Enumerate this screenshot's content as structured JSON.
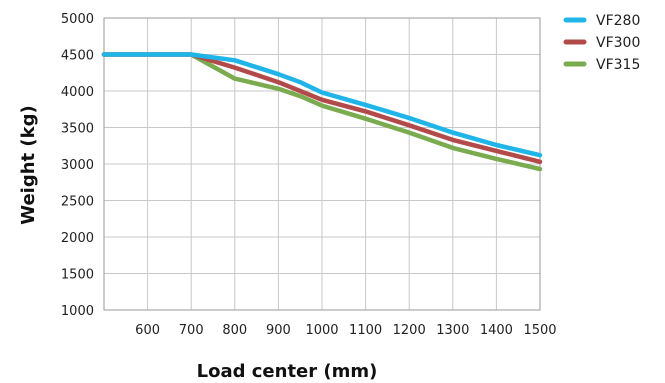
{
  "chart_data": {
    "type": "line",
    "title": "",
    "xlabel": "Load center (mm)",
    "ylabel": "Weight (kg)",
    "xlim": [
      500,
      1500
    ],
    "ylim": [
      1000,
      5000
    ],
    "x_ticks": [
      600,
      700,
      800,
      900,
      1000,
      1100,
      1200,
      1300,
      1400,
      1500
    ],
    "y_ticks": [
      1000,
      1500,
      2000,
      2500,
      3000,
      3500,
      4000,
      4500,
      5000
    ],
    "grid": true,
    "legend_position": "right",
    "series": [
      {
        "name": "VF280",
        "color": "#1fb5e8",
        "points": [
          [
            500,
            4500
          ],
          [
            700,
            4500
          ],
          [
            800,
            4420
          ],
          [
            900,
            4230
          ],
          [
            950,
            4120
          ],
          [
            1000,
            3980
          ],
          [
            1100,
            3810
          ],
          [
            1200,
            3630
          ],
          [
            1300,
            3430
          ],
          [
            1400,
            3260
          ],
          [
            1500,
            3120
          ]
        ]
      },
      {
        "name": "VF300",
        "color": "#b34a4a",
        "points": [
          [
            500,
            4500
          ],
          [
            700,
            4500
          ],
          [
            800,
            4320
          ],
          [
            900,
            4120
          ],
          [
            950,
            4000
          ],
          [
            1000,
            3880
          ],
          [
            1100,
            3720
          ],
          [
            1200,
            3530
          ],
          [
            1300,
            3330
          ],
          [
            1400,
            3180
          ],
          [
            1500,
            3030
          ]
        ]
      },
      {
        "name": "VF315",
        "color": "#7aab4f",
        "points": [
          [
            500,
            4500
          ],
          [
            700,
            4500
          ],
          [
            800,
            4170
          ],
          [
            900,
            4030
          ],
          [
            950,
            3930
          ],
          [
            1000,
            3800
          ],
          [
            1100,
            3620
          ],
          [
            1200,
            3430
          ],
          [
            1300,
            3220
          ],
          [
            1400,
            3070
          ],
          [
            1500,
            2930
          ]
        ]
      }
    ]
  }
}
